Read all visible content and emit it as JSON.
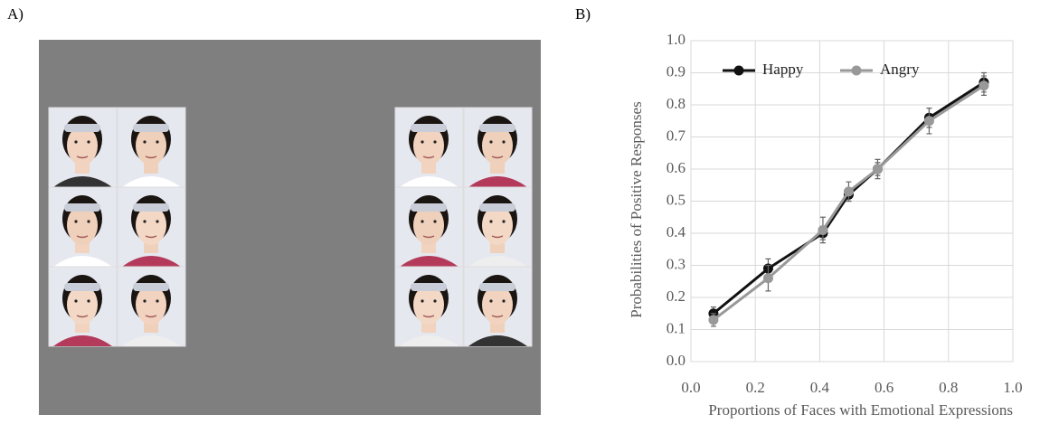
{
  "panel_labels": [
    "A)",
    "B)"
  ],
  "chart_data": {
    "type": "line",
    "x_label": "Proportions of Faces with Emotional Expressions",
    "y_label": "Probabilities of Positive Responses",
    "x": [
      0.07,
      0.24,
      0.41,
      0.49,
      0.58,
      0.74,
      0.91
    ],
    "series": [
      {
        "name": "Happy",
        "color": "#111111",
        "values": [
          0.15,
          0.29,
          0.4,
          0.52,
          0.6,
          0.76,
          0.87
        ],
        "errors": [
          0.02,
          0.03,
          0.02,
          0.02,
          0.02,
          0.03,
          0.03
        ]
      },
      {
        "name": "Angry",
        "color": "#999999",
        "values": [
          0.13,
          0.26,
          0.41,
          0.53,
          0.6,
          0.75,
          0.86
        ],
        "errors": [
          0.02,
          0.04,
          0.04,
          0.03,
          0.03,
          0.04,
          0.03
        ]
      }
    ],
    "xlim": [
      0,
      1
    ],
    "xticks": [
      {
        "value": 0,
        "label": "0.0"
      },
      0.2,
      0.4,
      0.6,
      0.8,
      {
        "value": 1,
        "label": "1.0"
      }
    ],
    "ylim": [
      0,
      1
    ],
    "yticks": [
      {
        "value": 0,
        "label": "0.0"
      },
      0.1,
      0.2,
      0.3,
      0.4,
      0.5,
      0.6,
      0.7,
      0.8,
      0.9,
      {
        "value": 1,
        "label": "1.0"
      }
    ],
    "grid": true,
    "legend": "top-left"
  }
}
